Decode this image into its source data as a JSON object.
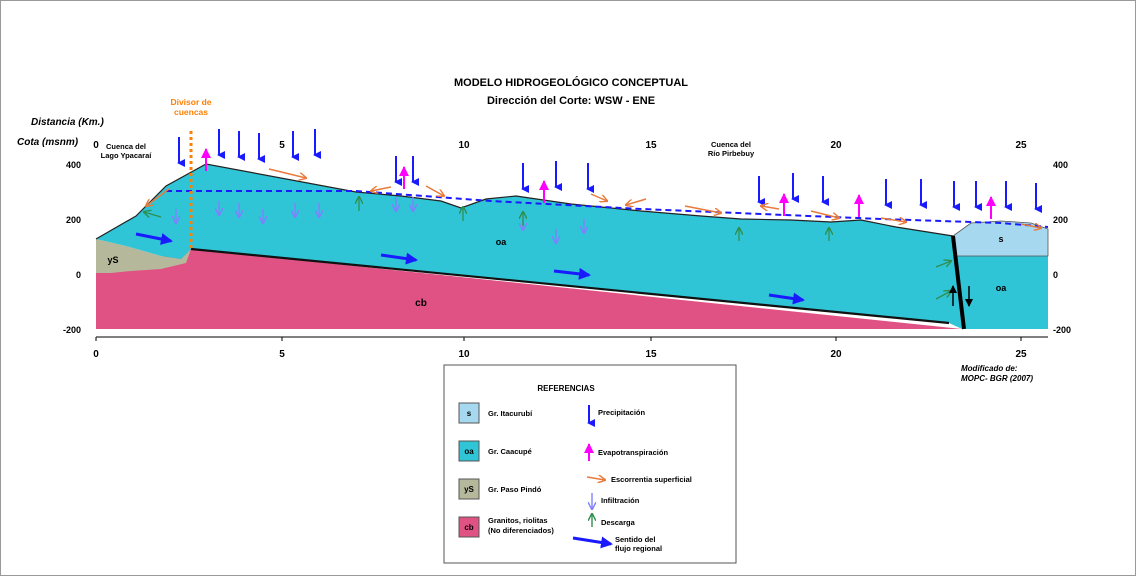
{
  "title": "MODELO HIDROGEOLÓGICO CONCEPTUAL",
  "subtitle": "Dirección del Corte:  WSW - ENE",
  "axis": {
    "distance_label": "Distancia (Km.)",
    "elevation_label": "Cota (msnm)",
    "x_ticks": [
      "0",
      "5",
      "10",
      "15",
      "20",
      "25"
    ],
    "y_ticks": [
      "400",
      "200",
      "0",
      "-200"
    ]
  },
  "annotations": {
    "divide_line1": "Divisor de",
    "divide_line2": "cuencas",
    "basin_west_line1": "Cuenca del",
    "basin_west_line2": "Lago Ypacaraí",
    "basin_east_line1": "Cuenca del",
    "basin_east_line2": "Río Pirbebuy",
    "credit_line1": "Modificado de:",
    "credit_line2": "MOPC- BGR (2007)"
  },
  "units": {
    "s": "s",
    "oa": "oa",
    "ys": "yS",
    "cb": "cb"
  },
  "legend": {
    "title": "REFERENCIAS",
    "formations": [
      {
        "code": "s",
        "label": "Gr. Itacurubí",
        "color": "#a6d8f0"
      },
      {
        "code": "oa",
        "label": "Gr. Caacupé",
        "color": "#2fc4d6"
      },
      {
        "code": "yS",
        "label": "Gr. Paso Pindó",
        "color": "#b5b89a"
      },
      {
        "code": "cb",
        "label_line1": "Granitos, riolitas",
        "label_line2": "(No diferenciados)",
        "color": "#e05284"
      }
    ],
    "symbols": {
      "precip": "Precipitación",
      "evapo": "Evapotranspiración",
      "runoff": "Escorrentia superficial",
      "infil": "Infiltración",
      "discharge": "Descarga",
      "flow_line1": "Sentido del",
      "flow_line2": "flujo regional"
    }
  },
  "colors": {
    "precipitation": "#1a1aff",
    "evapotranspiration": "#ff00ff",
    "runoff": "#e87a3c",
    "infiltration": "#8080ff",
    "discharge": "#2f8f4f",
    "regional_flow": "#1a1aff",
    "water_table": "#1a1aff",
    "divide": "#ff7f00"
  }
}
